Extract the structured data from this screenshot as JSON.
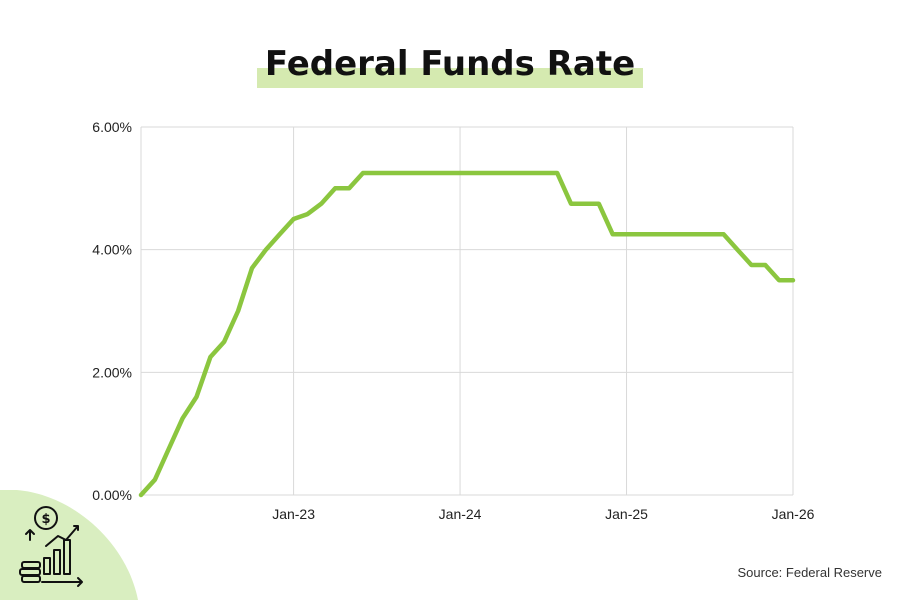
{
  "title": "Federal Funds Rate",
  "source": "Source: Federal Reserve",
  "colors": {
    "line": "#8bc63f",
    "highlight": "#d5eab0",
    "grid": "#d9d9d9",
    "logo_bg": "#d9eec0"
  },
  "logo_icon": "finance-growth-icon",
  "chart_data": {
    "type": "line",
    "title": "Federal Funds Rate",
    "xlabel": "",
    "ylabel": "",
    "x_ticks": [
      "Jan-23",
      "Jan-24",
      "Jan-25",
      "Jan-26"
    ],
    "y_ticks": [
      "0.00%",
      "2.00%",
      "4.00%",
      "6.00%"
    ],
    "ylim": [
      0,
      6
    ],
    "xlim": [
      "2022-02",
      "2026-01"
    ],
    "grid": true,
    "legend": "none",
    "series": [
      {
        "name": "",
        "points": [
          {
            "x": "2022-02",
            "y": 0.0
          },
          {
            "x": "2022-03",
            "y": 0.25
          },
          {
            "x": "2022-04",
            "y": 0.75
          },
          {
            "x": "2022-05",
            "y": 1.25
          },
          {
            "x": "2022-06",
            "y": 1.6
          },
          {
            "x": "2022-07",
            "y": 2.25
          },
          {
            "x": "2022-08",
            "y": 2.5
          },
          {
            "x": "2022-09",
            "y": 3.0
          },
          {
            "x": "2022-10",
            "y": 3.7
          },
          {
            "x": "2022-11",
            "y": 4.0
          },
          {
            "x": "2022-12",
            "y": 4.25
          },
          {
            "x": "2023-01",
            "y": 4.5
          },
          {
            "x": "2023-02",
            "y": 4.58
          },
          {
            "x": "2023-03",
            "y": 4.75
          },
          {
            "x": "2023-04",
            "y": 5.0
          },
          {
            "x": "2023-05",
            "y": 5.0
          },
          {
            "x": "2023-06",
            "y": 5.25
          },
          {
            "x": "2024-08",
            "y": 5.25
          },
          {
            "x": "2024-09",
            "y": 4.75
          },
          {
            "x": "2024-11",
            "y": 4.75
          },
          {
            "x": "2024-12",
            "y": 4.25
          },
          {
            "x": "2025-08",
            "y": 4.25
          },
          {
            "x": "2025-09",
            "y": 4.0
          },
          {
            "x": "2025-10",
            "y": 3.75
          },
          {
            "x": "2025-11",
            "y": 3.75
          },
          {
            "x": "2025-12",
            "y": 3.5
          },
          {
            "x": "2026-01",
            "y": 3.5
          }
        ]
      }
    ]
  }
}
